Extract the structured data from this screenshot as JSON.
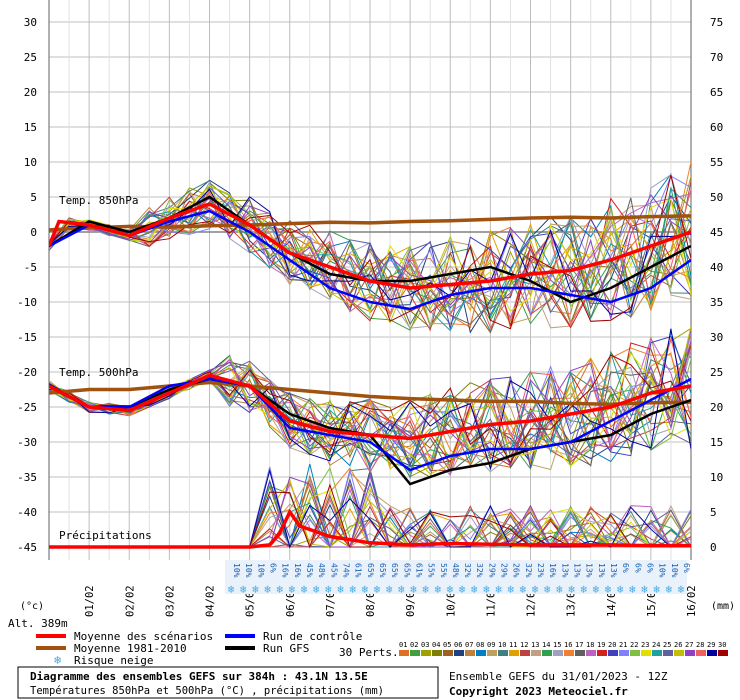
{
  "chart_data": {
    "type": "line",
    "title": "Diagramme des ensembles GEFS sur 384h : 43.1N 13.5E",
    "subtitle": "Températures 850hPa et 500hPa (°C) , précipitations (mm)",
    "run_info": "Ensemble GEFS du 31/01/2023 - 12Z",
    "copyright": "Copyright 2023 Meteociel.fr",
    "altitude": "Alt. 389m",
    "xlabel": "",
    "ylabel_left_unit": "(°c)",
    "ylabel_right_unit": "(mm)",
    "grid": true,
    "x_ticks": [
      "01/02",
      "02/02",
      "03/02",
      "04/02",
      "05/02",
      "06/02",
      "07/02",
      "08/02",
      "09/02",
      "10/02",
      "11/02",
      "12/02",
      "13/02",
      "14/02",
      "15/02",
      "16/02"
    ],
    "x_range_hours": [
      0,
      384
    ],
    "ylim_left": [
      -50,
      30
    ],
    "y_ticks_left": [
      "30",
      "25",
      "20",
      "15",
      "10",
      "5",
      "0",
      "-5",
      "-10",
      "-15",
      "-20",
      "-25",
      "-30",
      "-35",
      "-40",
      "-45"
    ],
    "y_ticks_right": [
      "75",
      "70",
      "65",
      "60",
      "55",
      "50",
      "45",
      "40",
      "35",
      "30",
      "25",
      "20",
      "15",
      "10",
      "5",
      "0"
    ],
    "panel_labels": {
      "t850": "Temp. 850hPa",
      "t500": "Temp. 500hPa",
      "precip": "Précipitations"
    },
    "climatology": {
      "name": "Moyenne 1981-2010",
      "color": "#a0520f",
      "t850": [
        [
          0,
          0.3
        ],
        [
          24,
          0.6
        ],
        [
          48,
          0.8
        ],
        [
          72,
          0.7
        ],
        [
          96,
          0.9
        ],
        [
          120,
          1.0
        ],
        [
          144,
          1.2
        ],
        [
          168,
          1.4
        ],
        [
          192,
          1.3
        ],
        [
          216,
          1.5
        ],
        [
          240,
          1.6
        ],
        [
          264,
          1.8
        ],
        [
          288,
          2.0
        ],
        [
          312,
          2.1
        ],
        [
          336,
          2.0
        ],
        [
          360,
          2.2
        ],
        [
          384,
          2.3
        ]
      ],
      "t500": [
        [
          0,
          -23
        ],
        [
          24,
          -22.5
        ],
        [
          48,
          -22.5
        ],
        [
          72,
          -22.0
        ],
        [
          96,
          -21.5
        ],
        [
          120,
          -22.0
        ],
        [
          144,
          -22.5
        ],
        [
          168,
          -23.0
        ],
        [
          192,
          -23.5
        ],
        [
          216,
          -23.8
        ],
        [
          240,
          -24.0
        ],
        [
          264,
          -24.2
        ],
        [
          288,
          -24.2
        ],
        [
          312,
          -24.5
        ],
        [
          336,
          -24.6
        ],
        [
          360,
          -24.4
        ],
        [
          384,
          -24.3
        ]
      ]
    },
    "series": [
      {
        "name": "Moyenne des scénarios",
        "color": "#ff0000",
        "t850": [
          [
            0,
            -2
          ],
          [
            6,
            1.5
          ],
          [
            24,
            1
          ],
          [
            48,
            -0.5
          ],
          [
            72,
            2
          ],
          [
            96,
            4
          ],
          [
            120,
            1
          ],
          [
            144,
            -3
          ],
          [
            168,
            -5
          ],
          [
            192,
            -7
          ],
          [
            216,
            -8
          ],
          [
            240,
            -7.5
          ],
          [
            264,
            -7
          ],
          [
            288,
            -6
          ],
          [
            312,
            -5.5
          ],
          [
            336,
            -4
          ],
          [
            360,
            -2
          ],
          [
            384,
            0
          ]
        ],
        "t500": [
          [
            0,
            -22
          ],
          [
            24,
            -25
          ],
          [
            48,
            -25.5
          ],
          [
            72,
            -23
          ],
          [
            96,
            -20.5
          ],
          [
            120,
            -22
          ],
          [
            144,
            -27
          ],
          [
            168,
            -28.5
          ],
          [
            192,
            -29
          ],
          [
            216,
            -29.5
          ],
          [
            240,
            -28.5
          ],
          [
            264,
            -27.5
          ],
          [
            288,
            -27
          ],
          [
            312,
            -26
          ],
          [
            336,
            -25
          ],
          [
            360,
            -23
          ],
          [
            384,
            -22
          ]
        ],
        "precip": [
          [
            0,
            0
          ],
          [
            120,
            0
          ],
          [
            132,
            0.3
          ],
          [
            138,
            2
          ],
          [
            144,
            5
          ],
          [
            150,
            3
          ],
          [
            168,
            1.5
          ],
          [
            192,
            0.6
          ],
          [
            216,
            0.3
          ],
          [
            240,
            0.5
          ],
          [
            264,
            0.4
          ],
          [
            288,
            0.3
          ],
          [
            312,
            0.3
          ],
          [
            336,
            0.3
          ],
          [
            360,
            0.2
          ],
          [
            384,
            0.2
          ]
        ]
      },
      {
        "name": "Run de contrôle",
        "color": "#0000ff",
        "t850": [
          [
            0,
            -2
          ],
          [
            24,
            1
          ],
          [
            48,
            -0.5
          ],
          [
            72,
            1.5
          ],
          [
            96,
            3
          ],
          [
            120,
            0
          ],
          [
            144,
            -4
          ],
          [
            168,
            -8
          ],
          [
            192,
            -10
          ],
          [
            216,
            -11
          ],
          [
            240,
            -9
          ],
          [
            264,
            -8
          ],
          [
            288,
            -8
          ],
          [
            312,
            -9
          ],
          [
            336,
            -10
          ],
          [
            360,
            -8
          ],
          [
            384,
            -4
          ]
        ],
        "t500": [
          [
            0,
            -22
          ],
          [
            24,
            -25
          ],
          [
            48,
            -25
          ],
          [
            72,
            -22
          ],
          [
            96,
            -21
          ],
          [
            120,
            -22
          ],
          [
            144,
            -28
          ],
          [
            168,
            -29
          ],
          [
            192,
            -30
          ],
          [
            216,
            -34
          ],
          [
            240,
            -32
          ],
          [
            264,
            -31
          ],
          [
            288,
            -31
          ],
          [
            312,
            -30
          ],
          [
            336,
            -27
          ],
          [
            360,
            -24
          ],
          [
            384,
            -21
          ]
        ]
      },
      {
        "name": "Run GFS",
        "color": "#000000",
        "t850": [
          [
            0,
            -2
          ],
          [
            24,
            1.5
          ],
          [
            48,
            0
          ],
          [
            72,
            2
          ],
          [
            96,
            5
          ],
          [
            120,
            1
          ],
          [
            144,
            -3
          ],
          [
            168,
            -6
          ],
          [
            192,
            -7
          ],
          [
            216,
            -7
          ],
          [
            240,
            -6
          ],
          [
            264,
            -5
          ],
          [
            288,
            -7
          ],
          [
            312,
            -10
          ],
          [
            336,
            -8
          ],
          [
            360,
            -5
          ],
          [
            384,
            -2
          ]
        ],
        "t500": [
          [
            0,
            -22
          ],
          [
            24,
            -25
          ],
          [
            48,
            -25
          ],
          [
            72,
            -22.5
          ],
          [
            96,
            -21
          ],
          [
            120,
            -22
          ],
          [
            144,
            -26
          ],
          [
            168,
            -28
          ],
          [
            192,
            -29
          ],
          [
            216,
            -36
          ],
          [
            240,
            -34
          ],
          [
            264,
            -33
          ],
          [
            288,
            -31
          ],
          [
            312,
            -30
          ],
          [
            336,
            -29
          ],
          [
            360,
            -26
          ],
          [
            384,
            -24
          ]
        ]
      }
    ],
    "perturbations_label": "30 Perts.",
    "perturbation_numbers": [
      "01",
      "02",
      "03",
      "04",
      "05",
      "06",
      "07",
      "08",
      "09",
      "10",
      "11",
      "12",
      "13",
      "14",
      "15",
      "16",
      "17",
      "18",
      "19",
      "20",
      "21",
      "22",
      "23",
      "24",
      "25",
      "26",
      "27",
      "28",
      "29",
      "30"
    ],
    "perturbation_colors": [
      "#e07020",
      "#40a040",
      "#a0a000",
      "#808000",
      "#a06020",
      "#204080",
      "#c08040",
      "#0080c0",
      "#c0a060",
      "#408080",
      "#e0a000",
      "#c04040",
      "#c0a080",
      "#30a050",
      "#a0a0c0",
      "#f08030",
      "#606060",
      "#c060c0",
      "#d02020",
      "#4040c0",
      "#8080ff",
      "#80c040",
      "#e0e000",
      "#20a0a0",
      "#6060a0",
      "#c0c000",
      "#9040c0",
      "#f06060",
      "#0000a0",
      "#a00000"
    ],
    "snow_risk": {
      "label": "Risque neige",
      "values": [
        "10%",
        "10%",
        "10%",
        "6%",
        "16%",
        "16%",
        "45%",
        "48%",
        "45%",
        "74%",
        "61%",
        "65%",
        "65%",
        "65%",
        "65%",
        "61%",
        "55%",
        "55%",
        "48%",
        "32%",
        "32%",
        "29%",
        "29%",
        "26%",
        "32%",
        "23%",
        "16%",
        "13%",
        "13%",
        "13%",
        "13%",
        "13%",
        "6%",
        "6%",
        "6%",
        "10%",
        "10%",
        "6%"
      ]
    },
    "legend": [
      "Moyenne des scénarios",
      "Moyenne 1981-2010",
      "Risque neige",
      "Run de contrôle",
      "Run GFS"
    ]
  }
}
